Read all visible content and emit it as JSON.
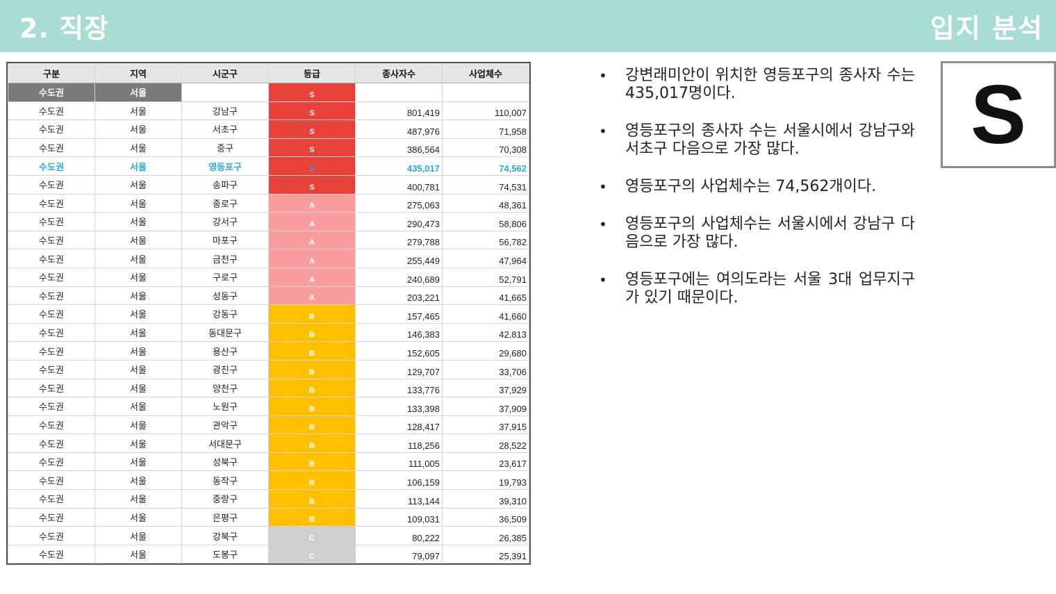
{
  "header": {
    "title": "2. 직장",
    "right_title": "입지 분석"
  },
  "table": {
    "columns": [
      "구분",
      "지역",
      "시군구",
      "등급",
      "종사자수",
      "사업체수"
    ],
    "summary_row": {
      "group": "수도권",
      "region": "서울",
      "district": "",
      "grade": "S",
      "workers": "",
      "businesses": ""
    },
    "rows": [
      {
        "group": "수도권",
        "region": "서울",
        "district": "강남구",
        "grade": "S",
        "workers": "801,419",
        "businesses": "110,007"
      },
      {
        "group": "수도권",
        "region": "서울",
        "district": "서초구",
        "grade": "S",
        "workers": "487,976",
        "businesses": "71,958"
      },
      {
        "group": "수도권",
        "region": "서울",
        "district": "중구",
        "grade": "S",
        "workers": "386,564",
        "businesses": "70,308"
      },
      {
        "group": "수도권",
        "region": "서울",
        "district": "영등포구",
        "grade": "S",
        "workers": "435,017",
        "businesses": "74,562",
        "highlight": true
      },
      {
        "group": "수도권",
        "region": "서울",
        "district": "송파구",
        "grade": "S",
        "workers": "400,781",
        "businesses": "74,531"
      },
      {
        "group": "수도권",
        "region": "서울",
        "district": "종로구",
        "grade": "A",
        "workers": "275,063",
        "businesses": "48,361"
      },
      {
        "group": "수도권",
        "region": "서울",
        "district": "강서구",
        "grade": "A",
        "workers": "290,473",
        "businesses": "58,806"
      },
      {
        "group": "수도권",
        "region": "서울",
        "district": "마포구",
        "grade": "A",
        "workers": "279,788",
        "businesses": "56,782"
      },
      {
        "group": "수도권",
        "region": "서울",
        "district": "금천구",
        "grade": "A",
        "workers": "255,449",
        "businesses": "47,964"
      },
      {
        "group": "수도권",
        "region": "서울",
        "district": "구로구",
        "grade": "A",
        "workers": "240,689",
        "businesses": "52,791"
      },
      {
        "group": "수도권",
        "region": "서울",
        "district": "성동구",
        "grade": "A",
        "workers": "203,221",
        "businesses": "41,665"
      },
      {
        "group": "수도권",
        "region": "서울",
        "district": "강동구",
        "grade": "B",
        "workers": "157,465",
        "businesses": "41,660"
      },
      {
        "group": "수도권",
        "region": "서울",
        "district": "동대문구",
        "grade": "B",
        "workers": "146,383",
        "businesses": "42,813"
      },
      {
        "group": "수도권",
        "region": "서울",
        "district": "용산구",
        "grade": "B",
        "workers": "152,605",
        "businesses": "29,680"
      },
      {
        "group": "수도권",
        "region": "서울",
        "district": "광진구",
        "grade": "B",
        "workers": "129,707",
        "businesses": "33,706"
      },
      {
        "group": "수도권",
        "region": "서울",
        "district": "양천구",
        "grade": "B",
        "workers": "133,776",
        "businesses": "37,929"
      },
      {
        "group": "수도권",
        "region": "서울",
        "district": "노원구",
        "grade": "B",
        "workers": "133,398",
        "businesses": "37,909"
      },
      {
        "group": "수도권",
        "region": "서울",
        "district": "관악구",
        "grade": "B",
        "workers": "128,417",
        "businesses": "37,915"
      },
      {
        "group": "수도권",
        "region": "서울",
        "district": "서대문구",
        "grade": "B",
        "workers": "118,256",
        "businesses": "28,522"
      },
      {
        "group": "수도권",
        "region": "서울",
        "district": "성북구",
        "grade": "B",
        "workers": "111,005",
        "businesses": "23,617"
      },
      {
        "group": "수도권",
        "region": "서울",
        "district": "동작구",
        "grade": "B",
        "workers": "106,159",
        "businesses": "19,793"
      },
      {
        "group": "수도권",
        "region": "서울",
        "district": "중랑구",
        "grade": "B",
        "workers": "113,144",
        "businesses": "39,310"
      },
      {
        "group": "수도권",
        "region": "서울",
        "district": "은평구",
        "grade": "B",
        "workers": "109,031",
        "businesses": "36,509"
      },
      {
        "group": "수도권",
        "region": "서울",
        "district": "강북구",
        "grade": "C",
        "workers": "80,222",
        "businesses": "26,385"
      },
      {
        "group": "수도권",
        "region": "서울",
        "district": "도봉구",
        "grade": "C",
        "workers": "79,097",
        "businesses": "25,391"
      }
    ]
  },
  "bullets": [
    "강변래미안이 위치한 영등포구의 종사자 수는 435,017명이다.",
    "영등포구의 종사자 수는 서울시에서 강남구와 서초구 다음으로 가장 많다.",
    "영등포구의 사업체수는 74,562개이다.",
    "영등포구의 사업체수는 서울시에서 강남구 다음으로 가장 많다.",
    "영등포구에는 여의도라는 서울 3대 업무지구가 있기 때문이다."
  ],
  "bullet_symbol": "•",
  "grade_badge": "S",
  "colors": {
    "header": "#a8dcd4",
    "grade_S": "#e8413a",
    "grade_A": "#f89e9e",
    "grade_B": "#ffc000",
    "grade_C": "#cfcfcf",
    "highlight": "#28a8e0"
  }
}
